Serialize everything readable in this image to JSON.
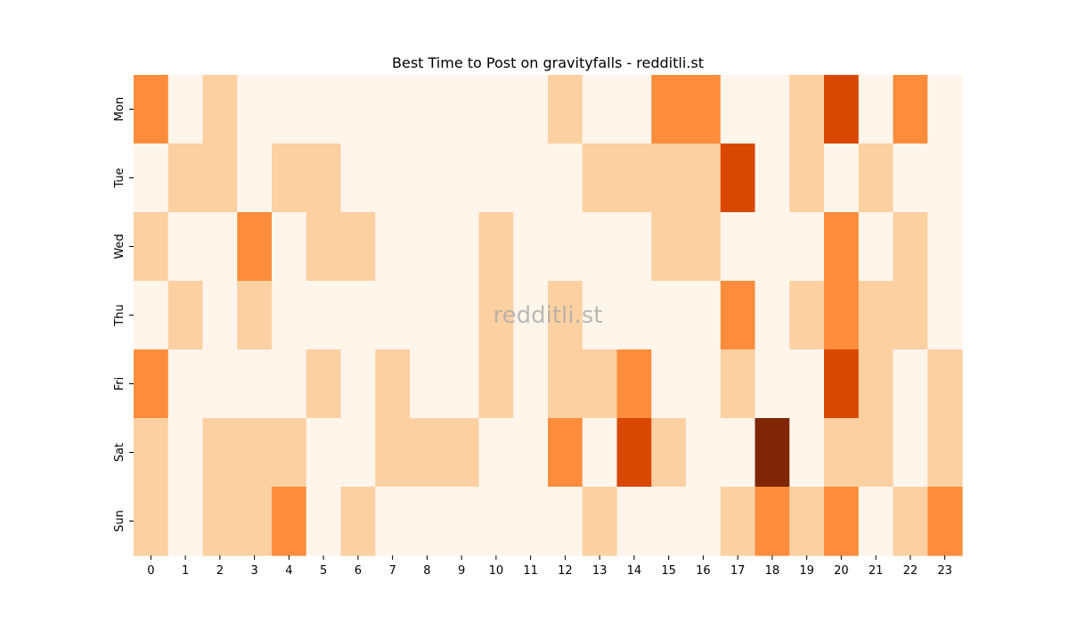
{
  "chart_data": {
    "type": "heatmap",
    "title": "Best Time to Post on gravityfalls - redditli.st",
    "xlabel": "",
    "ylabel": "",
    "x_tick_labels": [
      "0",
      "1",
      "2",
      "3",
      "4",
      "5",
      "6",
      "7",
      "8",
      "9",
      "10",
      "11",
      "12",
      "13",
      "14",
      "15",
      "16",
      "17",
      "18",
      "19",
      "20",
      "21",
      "22",
      "23"
    ],
    "y_tick_labels": [
      "Mon",
      "Tue",
      "Wed",
      "Thu",
      "Fri",
      "Sat",
      "Sun"
    ],
    "value_range": [
      0,
      4
    ],
    "colorbar": false,
    "colormap": [
      "#fff5eb",
      "#fdd0a2",
      "#fd8d3c",
      "#d94801",
      "#7f2704"
    ],
    "values": [
      [
        2,
        0,
        1,
        0,
        0,
        0,
        0,
        0,
        0,
        0,
        0,
        0,
        1,
        0,
        0,
        2,
        2,
        0,
        0,
        1,
        3,
        0,
        2,
        0
      ],
      [
        0,
        1,
        1,
        0,
        1,
        1,
        0,
        0,
        0,
        0,
        0,
        0,
        0,
        1,
        1,
        1,
        1,
        3,
        0,
        1,
        0,
        1,
        0,
        0
      ],
      [
        1,
        0,
        0,
        2,
        0,
        1,
        1,
        0,
        0,
        0,
        1,
        0,
        0,
        0,
        0,
        1,
        1,
        0,
        0,
        0,
        2,
        0,
        1,
        0
      ],
      [
        0,
        1,
        0,
        1,
        0,
        0,
        0,
        0,
        0,
        0,
        1,
        0,
        1,
        0,
        0,
        0,
        0,
        2,
        0,
        1,
        2,
        1,
        1,
        0
      ],
      [
        2,
        0,
        0,
        0,
        0,
        1,
        0,
        1,
        0,
        0,
        1,
        0,
        1,
        1,
        2,
        0,
        0,
        1,
        0,
        0,
        3,
        1,
        0,
        1
      ],
      [
        1,
        0,
        1,
        1,
        1,
        0,
        0,
        1,
        1,
        1,
        0,
        0,
        2,
        0,
        3,
        1,
        0,
        0,
        4,
        0,
        1,
        1,
        0,
        1
      ],
      [
        1,
        0,
        1,
        1,
        2,
        0,
        1,
        0,
        0,
        0,
        0,
        0,
        0,
        1,
        0,
        0,
        0,
        1,
        2,
        1,
        2,
        0,
        1,
        2
      ]
    ]
  },
  "watermark": "redditli.st"
}
